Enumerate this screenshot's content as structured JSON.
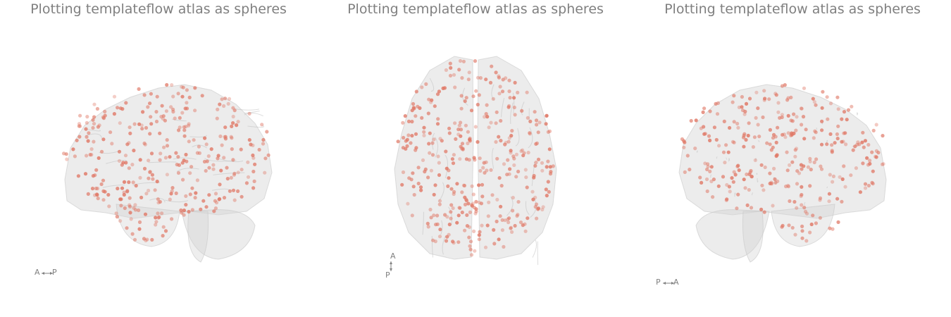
{
  "figure": {
    "title": "Plotting templateflow atlas as spheres",
    "colors": {
      "brain_fill": "#d4d4d4",
      "brain_edge": "#c8c8c8",
      "sphere": "#e07866",
      "text": "#808080"
    },
    "panels": [
      {
        "view": "lateral-left",
        "orientation": {
          "first": "A",
          "second": "P",
          "axis": "horizontal"
        }
      },
      {
        "view": "superior",
        "orientation": {
          "first": "A",
          "second": "P",
          "axis": "vertical"
        }
      },
      {
        "view": "lateral-right",
        "orientation": {
          "first": "P",
          "second": "A",
          "axis": "horizontal"
        }
      }
    ]
  }
}
